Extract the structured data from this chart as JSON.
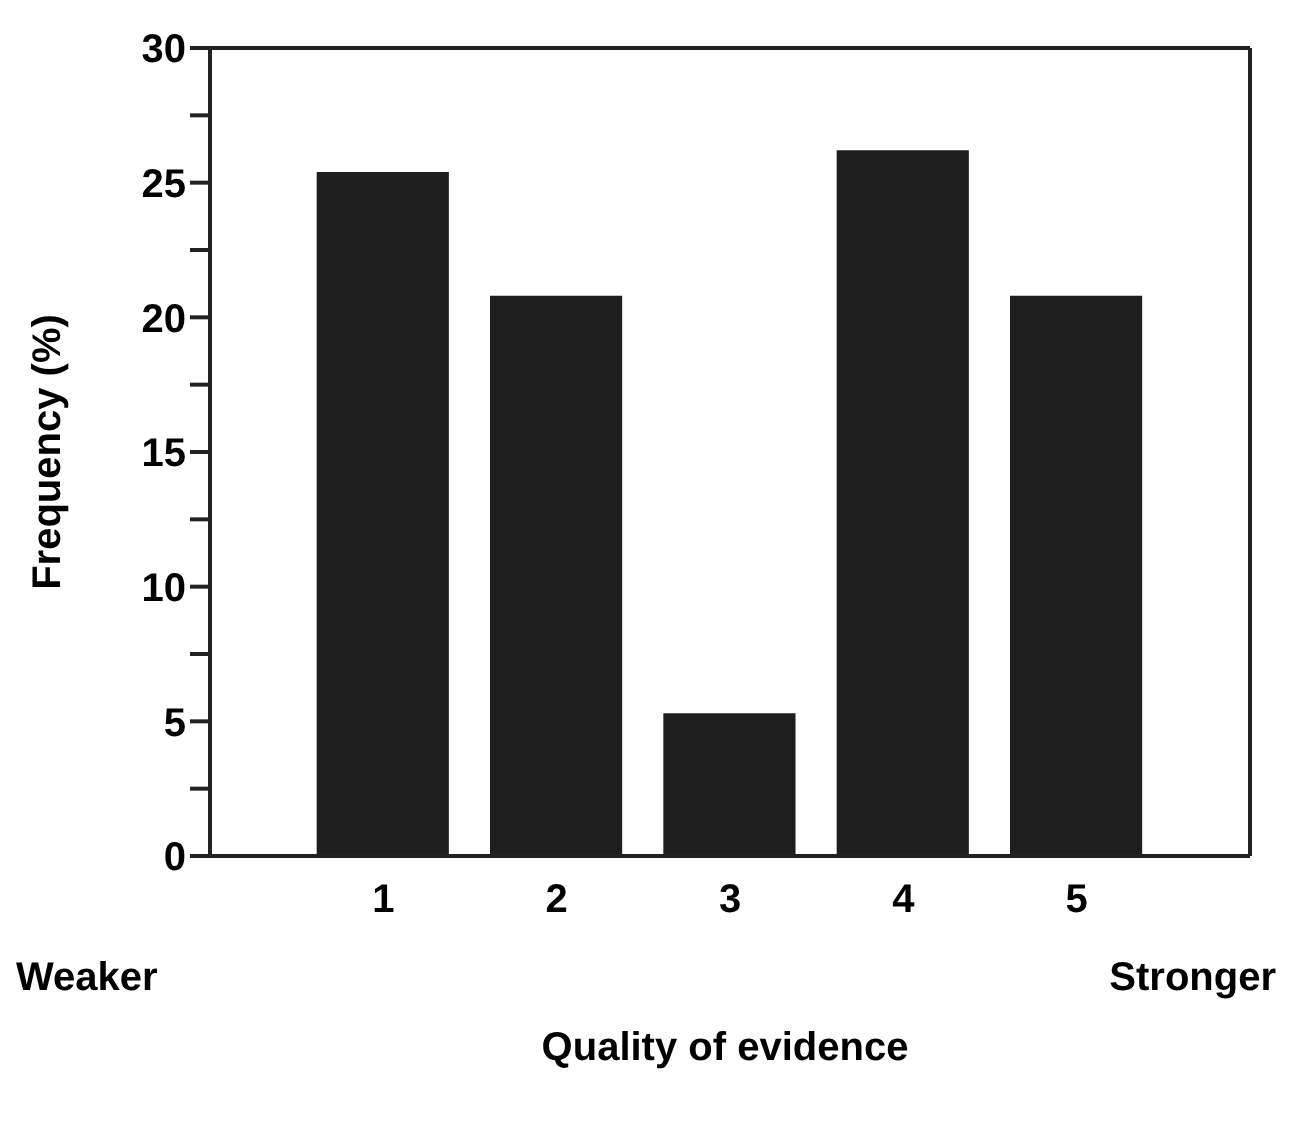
{
  "chart_data": {
    "type": "bar",
    "xlabel": "Quality of evidence",
    "ylabel": "Frequency (%)",
    "x": [
      1,
      2,
      3,
      4,
      5
    ],
    "values": [
      25.4,
      20.8,
      5.3,
      26.2,
      20.8
    ],
    "color": "#1e1e1e",
    "xlim": [
      0,
      6
    ],
    "xticks": [
      1,
      2,
      3,
      4,
      5
    ],
    "ylim": [
      0,
      30
    ],
    "yticks": [
      0,
      {
        "value": 2.5,
        "label": null
      },
      5,
      {
        "value": 7.5,
        "label": null
      },
      10,
      {
        "value": 12.5,
        "label": null
      },
      15,
      {
        "value": 17.5,
        "label": null
      },
      20,
      {
        "value": 22.5,
        "label": null
      },
      25,
      {
        "value": 27.5,
        "label": null
      },
      30
    ],
    "annotations": [
      "Weaker",
      "Stronger"
    ],
    "grid": false
  }
}
